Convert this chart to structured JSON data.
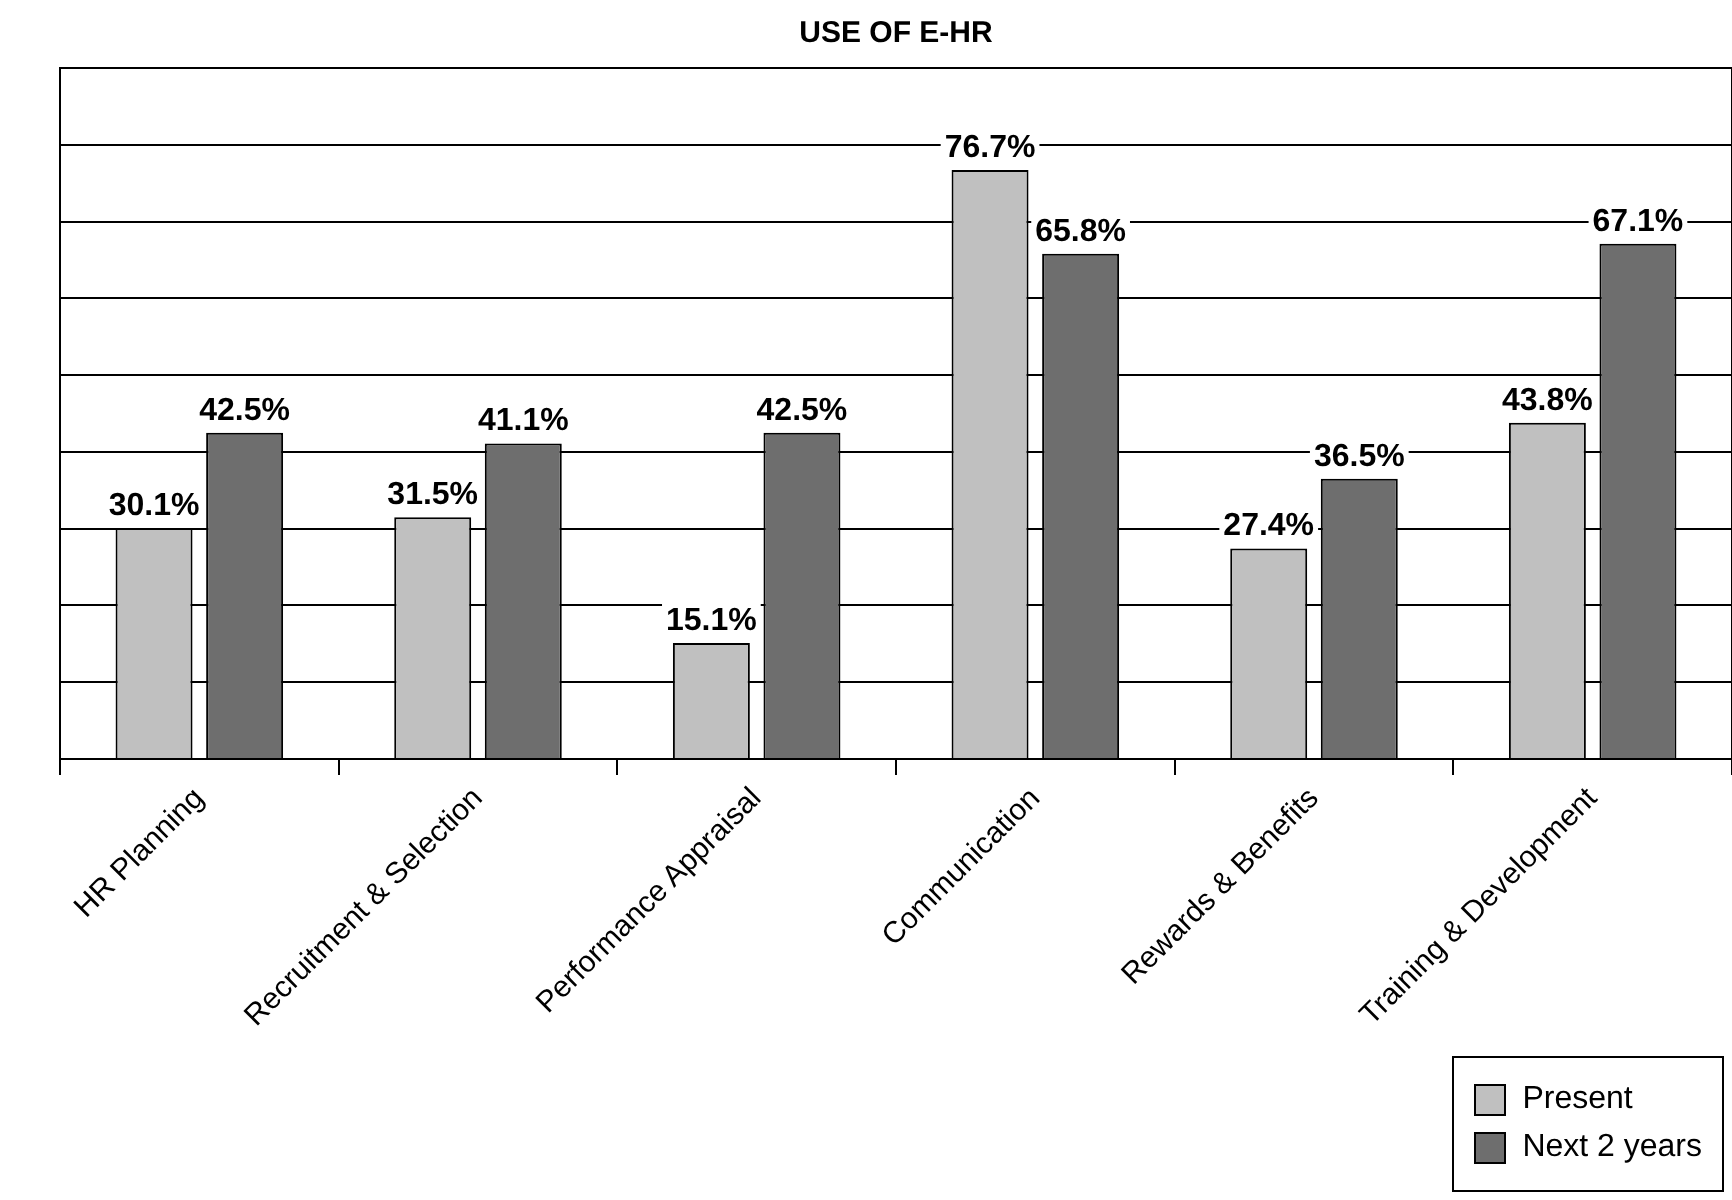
{
  "chart_data": {
    "type": "bar",
    "title": "USE OF E-HR",
    "categories": [
      "HR Planning",
      "Recruitment & Selection",
      "Performance Appraisal",
      "Communication",
      "Rewards & Benefits",
      "Training & Development"
    ],
    "series": [
      {
        "name": "Present",
        "color": "#c0c0c0",
        "values": [
          30.1,
          31.5,
          15.1,
          76.7,
          27.4,
          43.8
        ],
        "value_labels": [
          "30.1%",
          "31.5%",
          "15.1%",
          "76.7%",
          "27.4%",
          "43.8%"
        ]
      },
      {
        "name": "Next 2 years",
        "color": "#6e6e6e",
        "values": [
          42.5,
          41.1,
          42.5,
          65.8,
          36.5,
          67.1
        ],
        "value_labels": [
          "42.5%",
          "41.1%",
          "42.5%",
          "65.8%",
          "36.5%",
          "67.1%"
        ]
      }
    ],
    "ylim": [
      0,
      90
    ],
    "yticks": [
      {
        "value": 0,
        "label": null
      },
      {
        "value": 10,
        "label": null
      },
      {
        "value": 20,
        "label": null
      },
      {
        "value": 30,
        "label": null
      },
      {
        "value": 40,
        "label": null
      },
      {
        "value": 50,
        "label": null
      },
      {
        "value": 60,
        "label": null
      },
      {
        "value": 70,
        "label": null
      },
      {
        "value": 80,
        "label": null
      },
      {
        "value": 90,
        "label": null
      }
    ],
    "grid": "y",
    "legend": "bottom right",
    "tick_labels": "x"
  }
}
